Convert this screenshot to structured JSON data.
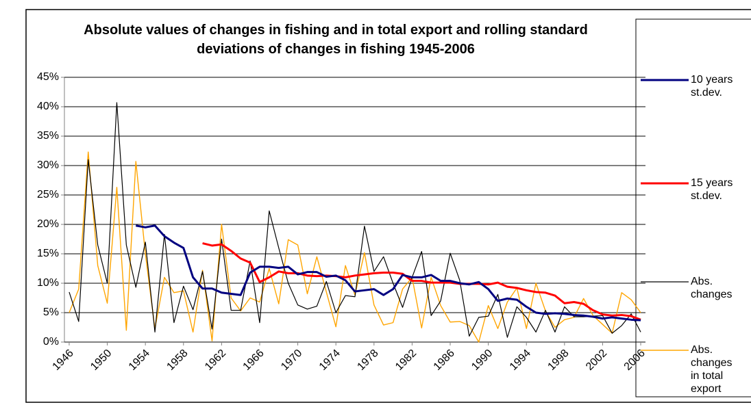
{
  "chart_data": {
    "type": "line",
    "title": "Absolute values of changes in fishing and in total export and rolling standard deviations of changes in fishing 1945-2006",
    "x": [
      1946,
      1947,
      1948,
      1949,
      1950,
      1951,
      1952,
      1953,
      1954,
      1955,
      1956,
      1957,
      1958,
      1959,
      1960,
      1961,
      1962,
      1963,
      1964,
      1965,
      1966,
      1967,
      1968,
      1969,
      1970,
      1971,
      1972,
      1973,
      1974,
      1975,
      1976,
      1977,
      1978,
      1979,
      1980,
      1981,
      1982,
      1983,
      1984,
      1985,
      1986,
      1987,
      1988,
      1989,
      1990,
      1991,
      1992,
      1993,
      1994,
      1995,
      1996,
      1997,
      1998,
      1999,
      2000,
      2001,
      2002,
      2003,
      2004,
      2005,
      2006
    ],
    "xlim": [
      1945.5,
      2006.5
    ],
    "xticks": [
      1946,
      1950,
      1954,
      1958,
      1962,
      1966,
      1970,
      1974,
      1978,
      1982,
      1986,
      1990,
      1994,
      1998,
      2002,
      2006
    ],
    "ylim": [
      0,
      45
    ],
    "yticks": [
      {
        "value": 0,
        "label": "0%"
      },
      {
        "value": 5,
        "label": "5%"
      },
      {
        "value": 10,
        "label": "10%"
      },
      {
        "value": 15,
        "label": "15%"
      },
      {
        "value": 20,
        "label": "20%"
      },
      {
        "value": 25,
        "label": "25%"
      },
      {
        "value": 30,
        "label": "30%"
      },
      {
        "value": 35,
        "label": "35%"
      },
      {
        "value": 40,
        "label": "40%"
      },
      {
        "value": 45,
        "label": "45%"
      }
    ],
    "grid": true,
    "legend": "right",
    "series": [
      {
        "name": "10 years st.dev.",
        "color": "#000080",
        "width": 3,
        "values": [
          null,
          null,
          null,
          null,
          null,
          null,
          null,
          19.8,
          19.5,
          19.8,
          18,
          16.9,
          16,
          11,
          9.1,
          9.1,
          8.4,
          8.2,
          8,
          11.8,
          12.8,
          12.8,
          12.6,
          12.8,
          11.5,
          11.9,
          11.9,
          11.1,
          11.3,
          10.5,
          8.6,
          8.8,
          9,
          8,
          9,
          11.4,
          11,
          11,
          11.4,
          10.4,
          10.4,
          10,
          9.8,
          10.2,
          9,
          7,
          7.4,
          7.2,
          6,
          5,
          4.8,
          4.9,
          4.8,
          4.6,
          4.5,
          4.3,
          4,
          4.2,
          4,
          3.8,
          3.7
        ]
      },
      {
        "name": "15 years st.dev.",
        "color": "#ff0000",
        "width": 3,
        "values": [
          null,
          null,
          null,
          null,
          null,
          null,
          null,
          null,
          null,
          null,
          null,
          null,
          null,
          null,
          16.8,
          16.4,
          16.6,
          15.5,
          14.2,
          13.5,
          10.2,
          11,
          12,
          11.7,
          11.7,
          11.3,
          11.2,
          11.3,
          11.2,
          11,
          11.3,
          11.5,
          11.7,
          11.8,
          11.8,
          11.6,
          10.4,
          10.4,
          10.1,
          10.1,
          10.1,
          9.9,
          9.9,
          9.9,
          9.8,
          10.1,
          9.4,
          9.2,
          8.8,
          8.5,
          8.4,
          7.9,
          6.6,
          6.8,
          6.5,
          5.4,
          4.7,
          4.5,
          4.6,
          4.4,
          3.8
        ]
      },
      {
        "name": "Abs. changes",
        "color": "#000000",
        "width": 1.2,
        "values": [
          8.5,
          3.5,
          31,
          16.5,
          10,
          40.7,
          16.5,
          9.3,
          17,
          1.7,
          18.3,
          3.3,
          9.5,
          5.5,
          12,
          2.2,
          17.5,
          5.4,
          5.4,
          13.8,
          3.3,
          22.3,
          16,
          10,
          6.3,
          5.6,
          6.1,
          10.3,
          5,
          7.9,
          7.7,
          19.7,
          12,
          14.5,
          10,
          5.9,
          11,
          15.4,
          4.5,
          7,
          15.1,
          10.5,
          1,
          4.2,
          4.4,
          8.1,
          0.8,
          6,
          4.2,
          1.7,
          5.4,
          1.7,
          6,
          4.3,
          4.3,
          4.4,
          4.5,
          1.5,
          2.8,
          4.8,
          1.7
        ]
      },
      {
        "name": "Abs. changes in total export",
        "color": "#ffa500",
        "width": 1.4,
        "values": [
          5,
          9,
          32.3,
          13,
          6.6,
          26.3,
          2,
          30.7,
          15,
          2.3,
          11,
          8.4,
          8.7,
          1.7,
          12.2,
          0.2,
          20,
          7.5,
          5.3,
          7.5,
          6.8,
          12.5,
          6.5,
          17.4,
          16.5,
          8.2,
          14.5,
          8.5,
          2.6,
          13,
          8,
          15.2,
          6.3,
          2.9,
          3.3,
          9,
          11,
          2.4,
          11,
          6.2,
          3.4,
          3.5,
          2.8,
          0,
          6.2,
          2.3,
          6.8,
          9.2,
          2.3,
          10,
          5.3,
          2.5,
          3.8,
          4.2,
          7.4,
          4.5,
          3,
          1.5,
          8.4,
          7.2,
          5
        ]
      }
    ]
  }
}
